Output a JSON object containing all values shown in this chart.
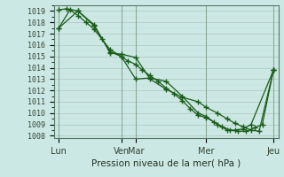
{
  "xlabel": "Pression niveau de la mer( hPa )",
  "bg_color": "#cce8e4",
  "grid_color_major": "#b8c8c0",
  "grid_color_minor": "#d8e8e4",
  "line_color": "#1a5c1a",
  "ylim": [
    1007.8,
    1019.5
  ],
  "yticks": [
    1008,
    1009,
    1010,
    1011,
    1012,
    1013,
    1014,
    1015,
    1016,
    1017,
    1018,
    1019
  ],
  "xlim": [
    0,
    14.0
  ],
  "xtick_positions": [
    0.3,
    4.2,
    5.1,
    9.5,
    13.7
  ],
  "xtick_labels": [
    "Lun",
    "Ven",
    "Mar",
    "Mer",
    "Jeu"
  ],
  "vline_positions": [
    0.3,
    4.2,
    5.1,
    9.5,
    13.7
  ],
  "line1_x": [
    0.3,
    1.0,
    1.5,
    2.0,
    2.5,
    3.0,
    3.5,
    4.2,
    4.6,
    5.1,
    5.5,
    6.0,
    6.5,
    7.0,
    7.5,
    8.0,
    8.5,
    9.0,
    9.5,
    10.0,
    10.5,
    11.0,
    11.5,
    12.0,
    12.5,
    13.0,
    13.7
  ],
  "line1_y": [
    1017.5,
    1019.1,
    1018.6,
    1018.0,
    1017.4,
    1016.5,
    1015.6,
    1015.0,
    1014.6,
    1014.3,
    1013.8,
    1013.3,
    1012.8,
    1012.2,
    1011.7,
    1011.1,
    1010.4,
    1009.8,
    1009.6,
    1009.2,
    1008.8,
    1008.5,
    1008.4,
    1008.4,
    1008.7,
    1009.0,
    1013.8
  ],
  "line2_x": [
    0.3,
    0.8,
    1.5,
    2.5,
    3.5,
    4.2,
    5.1,
    6.0,
    7.0,
    8.0,
    9.0,
    9.5,
    10.2,
    10.8,
    11.3,
    11.8,
    12.3,
    12.8,
    13.7
  ],
  "line2_y": [
    1019.1,
    1019.2,
    1019.0,
    1017.8,
    1015.3,
    1015.2,
    1014.9,
    1013.0,
    1012.1,
    1011.4,
    1011.0,
    1010.5,
    1010.0,
    1009.5,
    1009.1,
    1008.8,
    1008.5,
    1008.4,
    1013.8
  ],
  "line3_x": [
    0.3,
    1.5,
    2.5,
    3.5,
    4.2,
    5.1,
    6.0,
    7.0,
    8.0,
    9.0,
    9.5,
    10.2,
    10.8,
    11.3,
    11.8,
    12.3,
    13.7
  ],
  "line3_y": [
    1017.5,
    1019.0,
    1017.7,
    1015.4,
    1015.0,
    1013.0,
    1013.1,
    1012.8,
    1011.5,
    1010.0,
    1009.7,
    1009.0,
    1008.5,
    1008.5,
    1008.6,
    1009.0,
    1013.8
  ],
  "marker": "+",
  "marker_size": 4,
  "linewidth": 0.9
}
